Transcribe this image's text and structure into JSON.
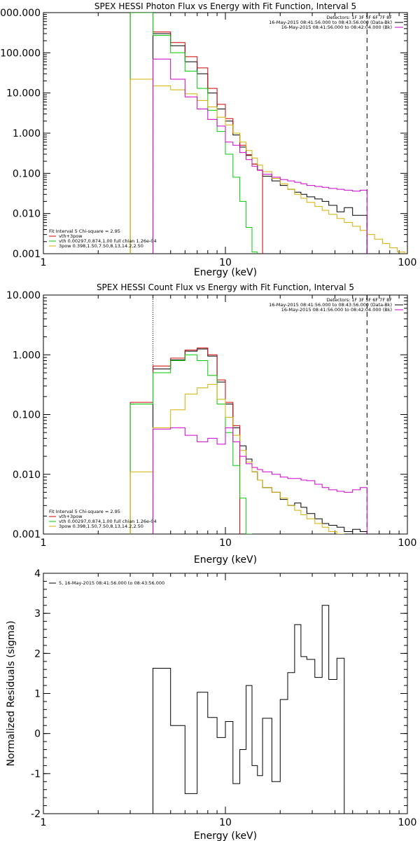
{
  "chart_data": [
    {
      "type": "line",
      "title": "SPEX HESSI Photon Flux vs Energy with Fit Function, Interval 5",
      "xlabel": "Energy (keV)",
      "ylabel": "",
      "x_scale": "log",
      "y_scale": "log",
      "xlim": [
        1,
        100
      ],
      "ylim": [
        0.001,
        1000
      ],
      "x_ticks": [
        {
          "value": 1,
          "label": "1"
        },
        {
          "value": 10,
          "label": "10"
        },
        {
          "value": 100,
          "label": "100"
        }
      ],
      "y_ticks": [
        {
          "value": 0.001,
          "label": "0.001"
        },
        {
          "value": 0.01,
          "label": "0.010"
        },
        {
          "value": 0.1,
          "label": "0.100"
        },
        {
          "value": 1,
          "label": "1.000"
        },
        {
          "value": 10,
          "label": "10.000"
        },
        {
          "value": 100,
          "label": "100.000"
        },
        {
          "value": 1000,
          "label": "1000.000"
        }
      ],
      "info_lines": [
        {
          "text": "Detectors: 1F 3F 5F 6F 7F 8F",
          "color": "#000000"
        },
        {
          "text": "16-May-2015 08:41:56.000 to 08:43:56.000 (Data-Bk)",
          "color": "#000000"
        },
        {
          "text": "16-May-2015 08:41:56.000 to 08:42:04.000 (Bk)",
          "color": "#cc00cc"
        }
      ],
      "fit_legend": [
        {
          "text": "Fit Interval 5   Chi-square = 2.95",
          "color": "#000000"
        },
        {
          "text": "vth+3pow",
          "color": "#cc0000"
        },
        {
          "text": "vth 0.00297,0.874,1.00  full chian 1.26e-04",
          "color": "#00cc00"
        },
        {
          "text": "3pow 0.398,1.50,7.50,8.13,14.2,2.50",
          "color": "#d4b000"
        }
      ],
      "vlines": [
        {
          "x": 4.0,
          "style": "dotted"
        },
        {
          "x": 60.0,
          "style": "dashed"
        }
      ],
      "x_edges": [
        3.0,
        4.0,
        5.0,
        6.0,
        7.0,
        8.0,
        9.0,
        10.0,
        11.0,
        12.0,
        13.0,
        14.0,
        15.0,
        16.0,
        18.0,
        20.0,
        22.0,
        24.0,
        26.0,
        28.0,
        31.0,
        34.0,
        37.0,
        41.0,
        45.0,
        50.0,
        55.0,
        60.0,
        66.0,
        73.0,
        80.0,
        88.0,
        97.0
      ],
      "series": [
        {
          "name": "Data-Bk",
          "color": "#000000",
          "values": [
            null,
            300,
            150,
            60,
            30,
            10,
            4,
            2,
            0.9,
            0.45,
            0.28,
            0.17,
            0.12,
            0.085,
            0.065,
            0.05,
            0.04,
            0.034,
            0.03,
            0.026,
            0.023,
            0.02,
            0.016,
            0.011,
            0.014,
            0.009,
            0.009,
            null,
            null,
            null,
            null,
            null
          ]
        },
        {
          "name": "vth+3pow",
          "color": "#cc0000",
          "values": [
            1000,
            330,
            180,
            80,
            42,
            13,
            5.2,
            2.3,
            1.0,
            0.5,
            0.29,
            0.17,
            0.12,
            null,
            null,
            null,
            null,
            null,
            null,
            null,
            null,
            null,
            null,
            null,
            null,
            null,
            null,
            null,
            null,
            null,
            null,
            null
          ]
        },
        {
          "name": "vth",
          "color": "#00cc00",
          "values": [
            1000,
            270,
            100,
            35,
            13,
            3.7,
            1.1,
            0.3,
            0.08,
            0.02,
            0.0045,
            0.0011,
            null,
            null,
            null,
            null,
            null,
            null,
            null,
            null,
            null,
            null,
            null,
            null,
            null,
            null,
            null,
            null,
            null,
            null,
            null,
            null
          ]
        },
        {
          "name": "3pow",
          "color": "#d4b000",
          "values": [
            22,
            15,
            12,
            9.5,
            6.5,
            4.5,
            2.5,
            1.6,
            1.0,
            0.6,
            0.37,
            0.24,
            0.16,
            0.11,
            0.075,
            0.055,
            0.04,
            0.03,
            0.024,
            0.019,
            0.015,
            0.012,
            0.0095,
            0.0075,
            0.006,
            0.0048,
            0.0038,
            0.003,
            0.0023,
            0.0018,
            0.0014,
            0.0011
          ]
        },
        {
          "name": "Bk",
          "color": "#cc00cc",
          "values": [
            null,
            70,
            22,
            8,
            4,
            2.2,
            1.5,
            0.6,
            0.5,
            0.33,
            0.22,
            0.15,
            0.12,
            0.095,
            0.08,
            0.07,
            0.065,
            0.06,
            0.055,
            0.05,
            0.047,
            0.045,
            0.042,
            0.04,
            0.038,
            0.036,
            0.038,
            null,
            null,
            null,
            null,
            null
          ]
        }
      ]
    },
    {
      "type": "line",
      "title": "SPEX HESSI Count Flux vs Energy with Fit Function, Interval 5",
      "xlabel": "Energy (keV)",
      "ylabel": "",
      "x_scale": "log",
      "y_scale": "log",
      "xlim": [
        1,
        100
      ],
      "ylim": [
        0.001,
        10
      ],
      "x_ticks": [
        {
          "value": 1,
          "label": "1"
        },
        {
          "value": 10,
          "label": "10"
        },
        {
          "value": 100,
          "label": "100"
        }
      ],
      "y_ticks": [
        {
          "value": 0.001,
          "label": "0.001"
        },
        {
          "value": 0.01,
          "label": "0.010"
        },
        {
          "value": 0.1,
          "label": "0.100"
        },
        {
          "value": 1,
          "label": "1.000"
        },
        {
          "value": 10,
          "label": "10.000"
        }
      ],
      "info_lines": [
        {
          "text": "Detectors: 1F 3F 5F 6F 7F 8F",
          "color": "#000000"
        },
        {
          "text": "16-May-2015 08:41:56.000 to 08:43:56.000 (Data-Bk)",
          "color": "#000000"
        },
        {
          "text": "16-May-2015 08:41:56.000 to 08:42:04.000 (Bk)",
          "color": "#cc00cc"
        }
      ],
      "fit_legend": [
        {
          "text": "Fit Interval 5   Chi-square = 2.95",
          "color": "#000000"
        },
        {
          "text": "vth+3pow",
          "color": "#cc0000"
        },
        {
          "text": "vth 0.00297,0.874,1.00  full chian 1.26e-04",
          "color": "#00cc00"
        },
        {
          "text": "3pow 0.398,1.50,7.50,8.13,14.2,2.50",
          "color": "#d4b000"
        }
      ],
      "vlines": [
        {
          "x": 4.0,
          "style": "dotted"
        },
        {
          "x": 60.0,
          "style": "dashed"
        }
      ],
      "x_edges": [
        3.0,
        4.0,
        5.0,
        6.0,
        7.0,
        8.0,
        9.0,
        10.0,
        11.0,
        12.0,
        13.0,
        14.0,
        15.0,
        16.0,
        18.0,
        20.0,
        22.0,
        24.0,
        26.0,
        28.0,
        31.0,
        34.0,
        37.0,
        41.0,
        45.0,
        50.0,
        55.0,
        60.0
      ],
      "series": [
        {
          "name": "Data-Bk",
          "color": "#000000",
          "values": [
            null,
            0.58,
            0.82,
            1.15,
            1.25,
            0.95,
            0.35,
            0.15,
            0.06,
            0.03,
            0.018,
            0.011,
            0.008,
            0.006,
            0.005,
            0.0038,
            0.003,
            0.0033,
            0.0028,
            0.0022,
            0.0018,
            0.0015,
            0.0014,
            0.0013,
            0.0011,
            0.0012,
            0.0011
          ]
        },
        {
          "name": "vth+3pow",
          "color": "#cc0000",
          "values": [
            0.16,
            0.65,
            0.88,
            1.2,
            1.3,
            1.0,
            0.38,
            0.16,
            0.065,
            null,
            null,
            null,
            null,
            null,
            null,
            null,
            null,
            null,
            null,
            null,
            null,
            null,
            null,
            null,
            null,
            null,
            null
          ]
        },
        {
          "name": "vth",
          "color": "#00cc00",
          "values": [
            0.15,
            0.5,
            0.8,
            1.0,
            0.8,
            0.45,
            0.15,
            0.05,
            0.014,
            0.004,
            0.001,
            null,
            null,
            null,
            null,
            null,
            null,
            null,
            null,
            null,
            null,
            null,
            null,
            null,
            null,
            null,
            null
          ]
        },
        {
          "name": "3pow",
          "color": "#d4b000",
          "values": [
            0.011,
            0.06,
            0.12,
            0.22,
            0.28,
            0.32,
            0.18,
            0.09,
            0.045,
            0.025,
            0.016,
            0.011,
            0.008,
            0.006,
            0.005,
            0.004,
            0.003,
            0.0025,
            0.0021,
            0.0018,
            0.0015,
            0.0013,
            0.0011,
            0.001,
            null,
            null,
            null
          ]
        },
        {
          "name": "Bk",
          "color": "#cc00cc",
          "values": [
            null,
            0.057,
            0.06,
            0.045,
            0.035,
            0.04,
            0.032,
            0.06,
            0.035,
            0.02,
            0.015,
            0.013,
            0.012,
            0.011,
            0.01,
            0.009,
            0.0085,
            0.0085,
            0.008,
            0.0078,
            0.0068,
            0.006,
            0.0055,
            0.0052,
            0.005,
            0.0055,
            0.006
          ]
        }
      ]
    },
    {
      "type": "line",
      "title": "",
      "xlabel": "Energy (keV)",
      "ylabel": "Normalized Residuals (sigma)",
      "x_scale": "log",
      "y_scale": "linear",
      "xlim": [
        1,
        100
      ],
      "ylim": [
        -2,
        4
      ],
      "x_ticks": [
        {
          "value": 1,
          "label": "1"
        },
        {
          "value": 10,
          "label": "10"
        },
        {
          "value": 100,
          "label": "100"
        }
      ],
      "y_ticks": [
        {
          "value": -2,
          "label": "-2"
        },
        {
          "value": -1,
          "label": "-1"
        },
        {
          "value": 0,
          "label": "0"
        },
        {
          "value": 1,
          "label": "1"
        },
        {
          "value": 2,
          "label": "2"
        },
        {
          "value": 3,
          "label": "3"
        },
        {
          "value": 4,
          "label": "4"
        }
      ],
      "info_lines": [],
      "fit_legend": [
        {
          "text": "5, 16-May-2015 08:41:56.000 to 08:43:56.000",
          "color": "#000000"
        }
      ],
      "vlines": [],
      "x_edges": [
        4.0,
        5.0,
        6.0,
        7.0,
        8.0,
        9.0,
        10.0,
        11.0,
        12.0,
        13.0,
        14.0,
        15.0,
        16.0,
        18.0,
        20.0,
        22.0,
        24.0,
        26.0,
        28.0,
        31.0,
        34.0,
        37.0,
        41.0,
        45.0,
        50.0,
        55.0,
        60.0
      ],
      "series": [
        {
          "name": "Residuals",
          "color": "#000000",
          "values": [
            1.63,
            0.2,
            -1.5,
            1.03,
            0.4,
            -0.1,
            0.3,
            -1.25,
            -0.4,
            1.2,
            -0.8,
            -1.05,
            0.38,
            -1.2,
            0.85,
            1.52,
            2.72,
            1.92,
            1.85,
            1.4,
            3.2,
            1.35,
            1.88,
            null,
            null,
            null
          ]
        }
      ]
    }
  ]
}
